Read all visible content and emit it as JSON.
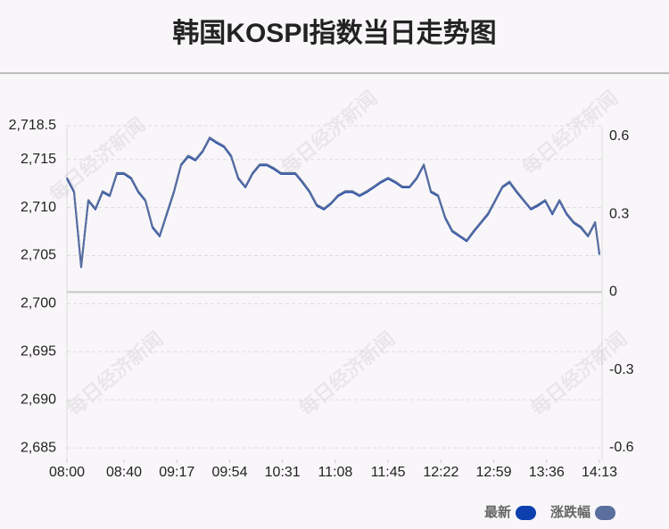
{
  "chart_data": {
    "type": "line",
    "title": "韩国KOSPI指数当日走势图",
    "watermark": "每日经济新闻",
    "xlim": [
      0,
      373
    ],
    "xticks": [
      {
        "value": 0,
        "label": "08:00"
      },
      {
        "value": 40,
        "label": "08:40"
      },
      {
        "value": 77,
        "label": "09:17"
      },
      {
        "value": 114,
        "label": "09:54"
      },
      {
        "value": 151,
        "label": "10:31"
      },
      {
        "value": 188,
        "label": "11:08"
      },
      {
        "value": 225,
        "label": "11:45"
      },
      {
        "value": 262,
        "label": "12:22"
      },
      {
        "value": 299,
        "label": "12:59"
      },
      {
        "value": 336,
        "label": "13:36"
      },
      {
        "value": 373,
        "label": "14:13"
      }
    ],
    "ylim": [
      2683.8,
      2718.5
    ],
    "yticks": [
      {
        "value": 2685,
        "label": "2,685"
      },
      {
        "value": 2690,
        "label": "2,690"
      },
      {
        "value": 2695,
        "label": "2,695"
      },
      {
        "value": 2700,
        "label": "2,700"
      },
      {
        "value": 2705,
        "label": "2,705"
      },
      {
        "value": 2710,
        "label": "2,710"
      },
      {
        "value": 2715,
        "label": "2,715"
      },
      {
        "value": 2718.5,
        "label": "2,718.5"
      }
    ],
    "y2lim": [
      -0.645,
      0.641
    ],
    "y2ticks": [
      -0.6,
      -0.3,
      0,
      0.3,
      0.6
    ],
    "grid": true,
    "legend": "bottom-right",
    "x": [
      0,
      5,
      10,
      15,
      20,
      25,
      30,
      35,
      40,
      45,
      50,
      55,
      60,
      65,
      70,
      75,
      80,
      85,
      90,
      95,
      100,
      105,
      110,
      115,
      120,
      125,
      130,
      135,
      140,
      145,
      150,
      155,
      160,
      165,
      170,
      175,
      180,
      185,
      190,
      195,
      200,
      205,
      210,
      215,
      220,
      225,
      230,
      235,
      240,
      245,
      250,
      255,
      260,
      265,
      270,
      275,
      280,
      285,
      290,
      295,
      300,
      305,
      310,
      315,
      320,
      325,
      330,
      335,
      340,
      345,
      350,
      355,
      360,
      365,
      370,
      373
    ],
    "series": [
      {
        "name": "最新",
        "color": "#0d3fae",
        "values": [
          2713.0,
          2711.6,
          2703.8,
          2710.7,
          2709.8,
          2711.6,
          2711.2,
          2713.5,
          2713.5,
          2713.0,
          2711.6,
          2710.7,
          2707.9,
          2707.0,
          2709.3,
          2711.6,
          2714.4,
          2715.3,
          2714.9,
          2715.8,
          2717.2,
          2716.7,
          2716.3,
          2715.3,
          2713.0,
          2712.1,
          2713.5,
          2714.4,
          2714.4,
          2714.0,
          2713.5,
          2713.5,
          2713.5,
          2712.6,
          2711.6,
          2710.2,
          2709.8,
          2710.4,
          2711.2,
          2711.6,
          2711.6,
          2711.2,
          2711.6,
          2712.1,
          2712.6,
          2713.0,
          2712.6,
          2712.1,
          2712.1,
          2713.0,
          2714.4,
          2711.6,
          2711.2,
          2708.9,
          2707.5,
          2707.0,
          2706.5,
          2707.5,
          2708.4,
          2709.3,
          2710.7,
          2712.1,
          2712.6,
          2711.6,
          2710.7,
          2709.8,
          2710.2,
          2710.7,
          2709.3,
          2710.7,
          2709.3,
          2708.4,
          2707.9,
          2707.0,
          2708.4,
          2705.1
        ]
      },
      {
        "name": "涨跌幅",
        "color": "#5b6f9e",
        "axis": "y2",
        "values": [
          0.441,
          0.389,
          0.1,
          0.355,
          0.322,
          0.389,
          0.374,
          0.459,
          0.459,
          0.441,
          0.389,
          0.355,
          0.252,
          0.218,
          0.304,
          0.389,
          0.492,
          0.526,
          0.511,
          0.544,
          0.596,
          0.578,
          0.563,
          0.526,
          0.441,
          0.407,
          0.459,
          0.492,
          0.492,
          0.478,
          0.459,
          0.459,
          0.459,
          0.426,
          0.389,
          0.337,
          0.322,
          0.344,
          0.374,
          0.389,
          0.389,
          0.374,
          0.389,
          0.407,
          0.426,
          0.441,
          0.426,
          0.407,
          0.407,
          0.441,
          0.492,
          0.389,
          0.374,
          0.289,
          0.237,
          0.218,
          0.2,
          0.237,
          0.27,
          0.304,
          0.355,
          0.407,
          0.426,
          0.389,
          0.355,
          0.322,
          0.337,
          0.355,
          0.304,
          0.355,
          0.304,
          0.27,
          0.252,
          0.218,
          0.27,
          0.148
        ]
      }
    ]
  }
}
